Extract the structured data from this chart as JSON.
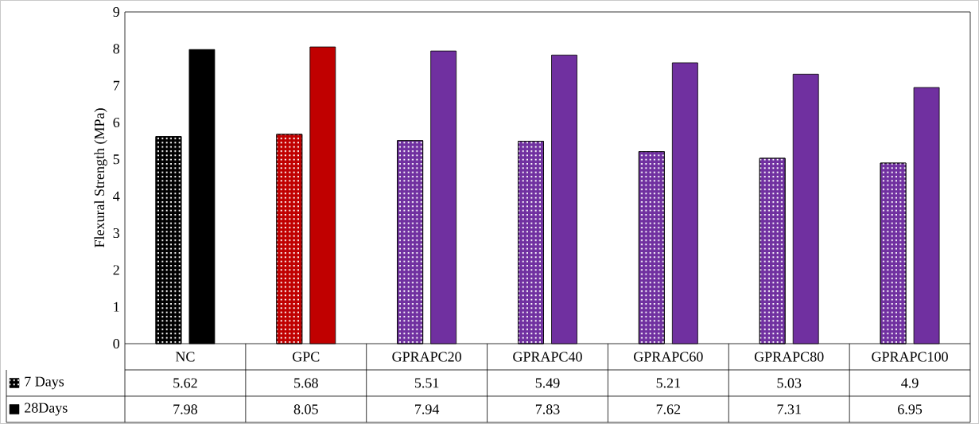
{
  "chart_data": {
    "type": "bar",
    "ylabel": "Flexural Strength (MPa)",
    "categories": [
      "NC",
      "GPC",
      "GPRAPC20",
      "GPRAPC40",
      "GPRAPC60",
      "GPRAPC80",
      "GPRAPC100"
    ],
    "series": [
      {
        "name": "7 Days",
        "color": "#000000",
        "colors": [
          "#000000",
          "#c00000",
          "#7030a0",
          "#7030a0",
          "#7030a0",
          "#7030a0",
          "#7030a0"
        ],
        "values": [
          5.62,
          5.68,
          5.51,
          5.49,
          5.21,
          5.03,
          4.9
        ]
      },
      {
        "name": "28Days",
        "color": "#000000",
        "colors": [
          "#000000",
          "#c00000",
          "#7030a0",
          "#7030a0",
          "#7030a0",
          "#7030a0",
          "#7030a0"
        ],
        "values": [
          7.98,
          8.05,
          7.94,
          7.83,
          7.62,
          7.31,
          6.95
        ]
      }
    ],
    "ylim": [
      0,
      9
    ],
    "yticks": [
      0,
      1,
      2,
      3,
      4,
      5,
      6,
      7,
      8,
      9
    ],
    "grid": false,
    "legend": "bottom left",
    "data_labels": true
  }
}
